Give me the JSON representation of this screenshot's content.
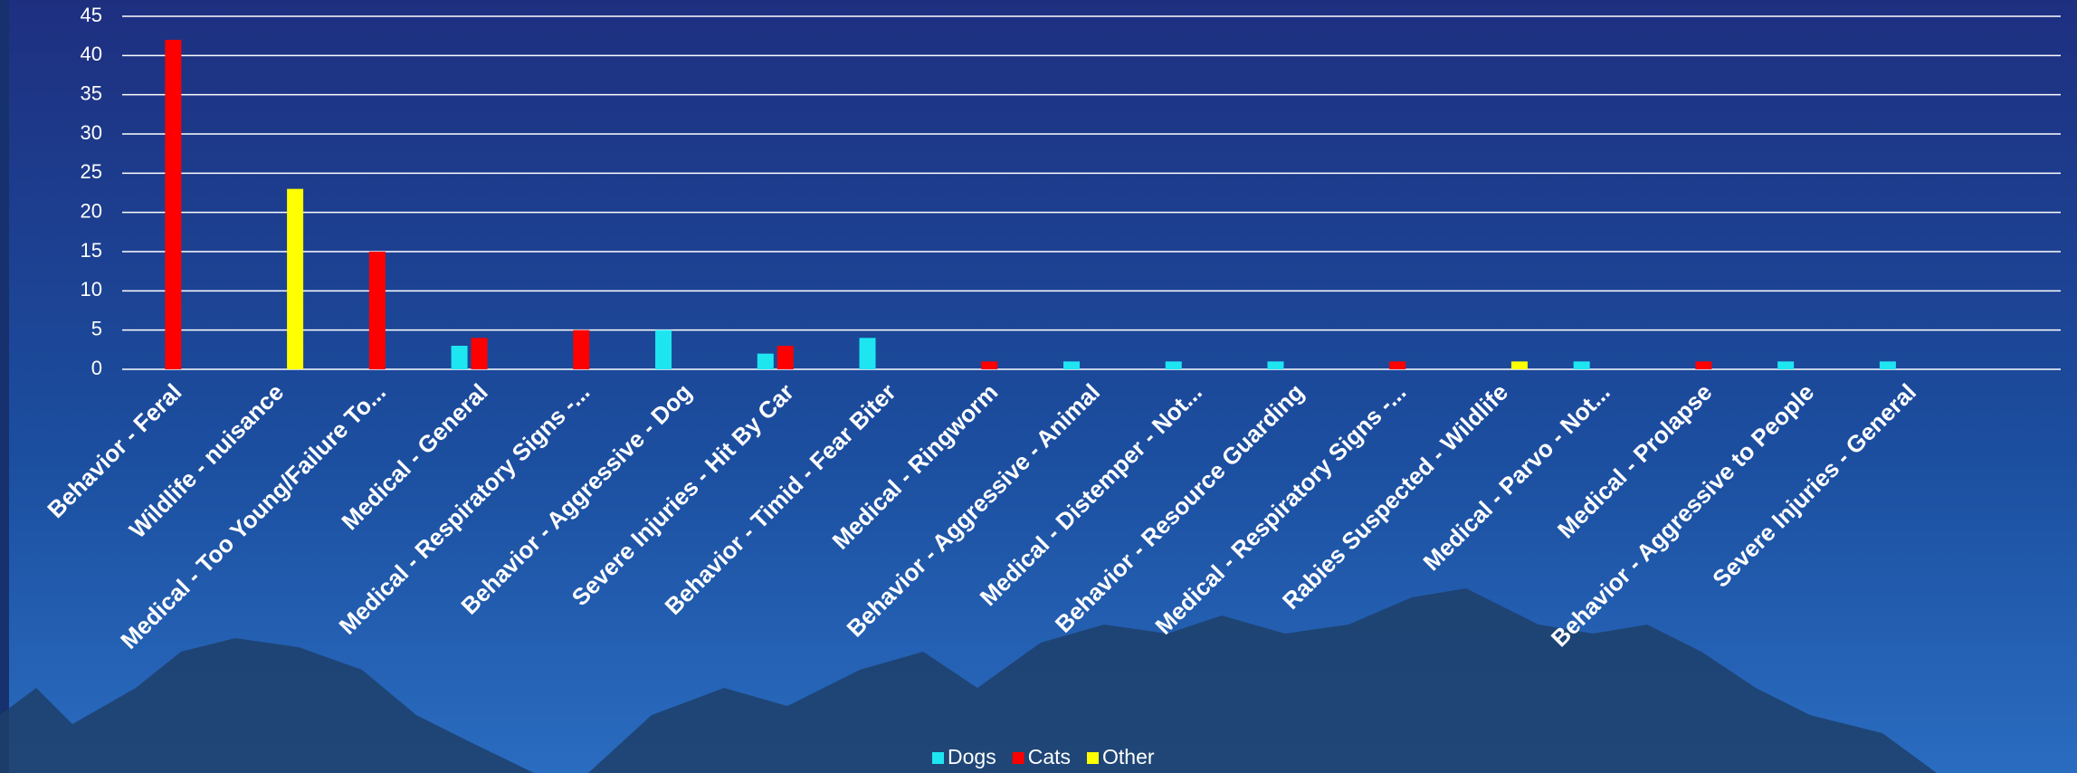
{
  "chart_data": {
    "type": "bar",
    "categories": [
      "Behavior - Feral",
      "Wildlife - nuisance",
      "Medical - Too Young/Failure To...",
      "Medical - General",
      "Medical - Respiratory Signs -...",
      "Behavior - Aggressive - Dog",
      "Severe Injuries - Hit By Car",
      "Behavior - Timid - Fear Biter",
      "Medical - Ringworm",
      "Behavior - Aggressive - Animal",
      "Medical - Distemper - Not...",
      "Behavior - Resource Guarding",
      "Medical - Respiratory Signs -...",
      "Rabies Suspected - Wildlife",
      "Medical - Parvo - Not...",
      "Medical - Prolapse",
      "Behavior - Aggressive to People",
      "Severe Injuries - General",
      null
    ],
    "series": [
      {
        "name": "Dogs",
        "color": "#1ee6f0",
        "values": [
          null,
          null,
          null,
          3,
          null,
          5,
          2,
          4,
          null,
          1,
          1,
          1,
          null,
          null,
          1,
          null,
          1,
          1,
          null
        ]
      },
      {
        "name": "Cats",
        "color": "#ff0000",
        "values": [
          42,
          null,
          15,
          4,
          5,
          null,
          3,
          null,
          1,
          null,
          null,
          null,
          1,
          null,
          null,
          1,
          null,
          null,
          null
        ]
      },
      {
        "name": "Other",
        "color": "#ffff00",
        "values": [
          null,
          23,
          null,
          null,
          null,
          null,
          null,
          null,
          null,
          null,
          null,
          null,
          null,
          1,
          null,
          null,
          null,
          null,
          null
        ]
      }
    ],
    "ylim": [
      0,
      45
    ],
    "yticks": [
      0,
      5,
      10,
      15,
      20,
      25,
      30,
      35,
      40,
      45
    ],
    "grid": true,
    "legend": "bottom"
  }
}
